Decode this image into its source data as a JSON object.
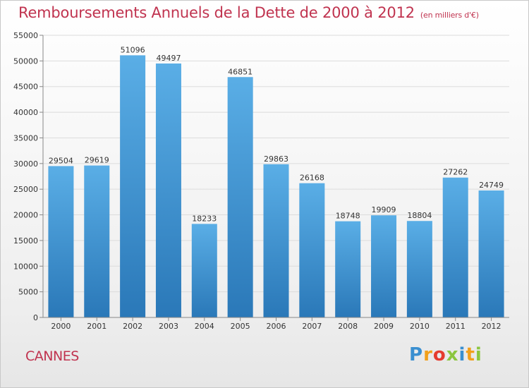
{
  "title": "Remboursements Annuels de la Dette de 2000 à 2012",
  "subtitle": "(en milliers d'€)",
  "city": "CANNES",
  "logo": "Proxiti",
  "colors": {
    "title": "#c0334f",
    "bar_top": "#5aaee6",
    "bar_bottom": "#2a78b8"
  },
  "chart_data": {
    "type": "bar",
    "title": "Remboursements Annuels de la Dette de 2000 à 2012",
    "xlabel": "",
    "ylabel": "",
    "categories": [
      "2000",
      "2001",
      "2002",
      "2003",
      "2004",
      "2005",
      "2006",
      "2007",
      "2008",
      "2009",
      "2010",
      "2011",
      "2012"
    ],
    "values": [
      29504,
      29619,
      51096,
      49497,
      18233,
      46851,
      29863,
      26168,
      18748,
      19909,
      18804,
      27262,
      24749
    ],
    "ylim": [
      0,
      55000
    ],
    "yticks": [
      0,
      5000,
      10000,
      15000,
      20000,
      25000,
      30000,
      35000,
      40000,
      45000,
      50000,
      55000
    ],
    "grid": true
  }
}
